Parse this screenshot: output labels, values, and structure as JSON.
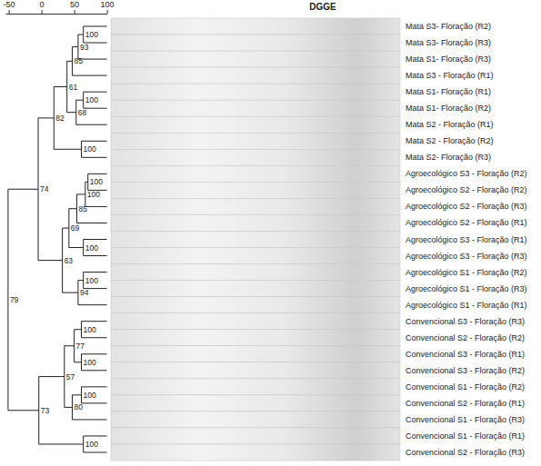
{
  "chart_data": {
    "type": "dendrogram",
    "title": "DGGE",
    "xlim": [
      -55,
      100
    ],
    "xticks": [
      -50,
      0,
      50,
      100
    ],
    "tree": {
      "height": -51,
      "support": 79,
      "children": [
        {
          "height": -5,
          "support": 74,
          "children": [
            {
              "height": 19,
              "support": 82,
              "children": [
                {
                  "height": 39,
                  "support": 61,
                  "children": [
                    {
                      "height": 47,
                      "support": 85,
                      "children": [
                        {
                          "height": 56,
                          "support": 93,
                          "children": [
                            {
                              "height": 64,
                              "support": 100,
                              "children": [
                                {
                                  "label": "Mata S3- Floração (R2)"
                                },
                                {
                                  "label": "Mata S3- Floração (R3)"
                                }
                              ]
                            },
                            {
                              "label": "Mata S1- Floração (R3)"
                            }
                          ]
                        },
                        {
                          "label": "Mata S3 - Floração (R1)"
                        }
                      ]
                    },
                    {
                      "height": 53,
                      "support": 68,
                      "children": [
                        {
                          "height": 64,
                          "support": 100,
                          "children": [
                            {
                              "label": "Mata S1- Floração (R1)"
                            },
                            {
                              "label": "Mata S1- Floração (R2)"
                            }
                          ]
                        },
                        {
                          "label": "Mata S2 - Floração (R1)"
                        }
                      ]
                    }
                  ]
                },
                {
                  "height": 61,
                  "support": 100,
                  "children": [
                    {
                      "label": "Mata S2 - Floração (R2)"
                    },
                    {
                      "label": "Mata S2- Floração (R3)"
                    }
                  ]
                }
              ]
            },
            {
              "height": 32,
              "support": 63,
              "children": [
                {
                  "height": 42,
                  "support": 69,
                  "children": [
                    {
                      "height": 54,
                      "support": 85,
                      "children": [
                        {
                          "height": 67,
                          "support": 100,
                          "children": [
                            {
                              "height": 71,
                              "support": 100,
                              "children": [
                                {
                                  "label": "Agroecológico S3 - Floração (R2)"
                                },
                                {
                                  "label": "Agroecológico S2 - Floração (R2)"
                                }
                              ]
                            },
                            {
                              "label": "Agroecológico S2 - Floração (R3)"
                            }
                          ]
                        },
                        {
                          "label": "Agroecológico S2 - Floração (R1)"
                        }
                      ]
                    },
                    {
                      "height": 64,
                      "support": 100,
                      "children": [
                        {
                          "label": "Agroecológico S3 - Floração (R1)"
                        },
                        {
                          "label": "Agroecológico S3 - Floração (R3)"
                        }
                      ]
                    }
                  ]
                },
                {
                  "height": 56,
                  "support": 94,
                  "children": [
                    {
                      "height": 64,
                      "support": 100,
                      "children": [
                        {
                          "label": "Agroecológico S1 - Floração (R2)"
                        },
                        {
                          "label": "Agroecológico S1 - Floração (R3)"
                        }
                      ]
                    },
                    {
                      "label": "Agroecológico S1 - Floração (R1)"
                    }
                  ]
                }
              ]
            }
          ]
        },
        {
          "height": -4,
          "support": 73,
          "children": [
            {
              "height": 35,
              "support": 57,
              "children": [
                {
                  "height": 50,
                  "support": 77,
                  "children": [
                    {
                      "height": 61,
                      "support": 100,
                      "children": [
                        {
                          "label": "Convencional S3 - Floração (R3)"
                        },
                        {
                          "label": "Convencional S2 - Floração (R2)"
                        }
                      ]
                    },
                    {
                      "height": 61,
                      "support": 100,
                      "children": [
                        {
                          "label": "Convencional S3 - Floração (R1)"
                        },
                        {
                          "label": "Convencional S3 - Floração (R2)"
                        }
                      ]
                    }
                  ]
                },
                {
                  "height": 47,
                  "support": 80,
                  "children": [
                    {
                      "height": 61,
                      "support": 100,
                      "children": [
                        {
                          "label": "Convencional S1 - Floração (R2)"
                        },
                        {
                          "label": "Convencional S2 - Floração (R1)"
                        }
                      ]
                    },
                    {
                      "label": "Convencional S1 - Floração (R3)"
                    }
                  ]
                }
              ]
            },
            {
              "height": 64,
              "support": 100,
              "children": [
                {
                  "label": "Convencional S1 - Floração (R1)"
                },
                {
                  "label": "Convencional S2 - Floração (R3)"
                }
              ]
            }
          ]
        }
      ]
    }
  }
}
